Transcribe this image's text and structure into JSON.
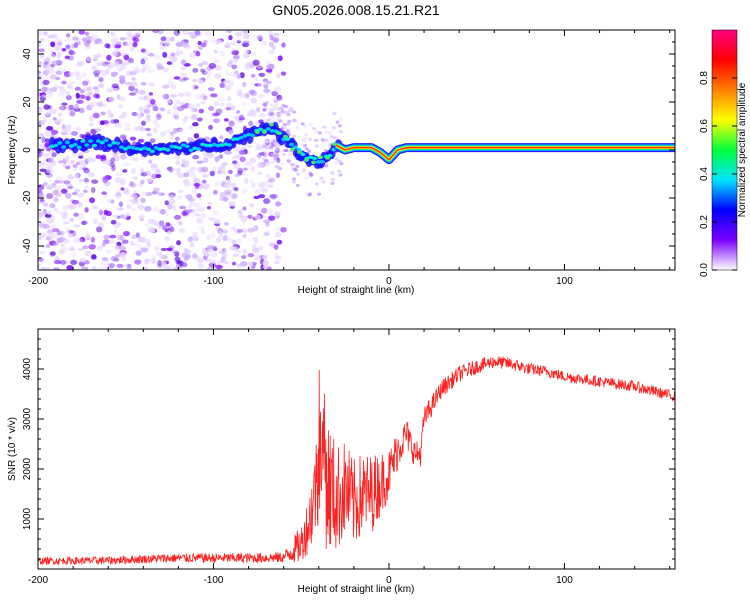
{
  "chart_data": [
    {
      "type": "heatmap",
      "title": "GN05.2026.008.15.21.R21",
      "xlabel": "Height of straight line (km)",
      "ylabel": "Frequency (Hz)",
      "xlim": [
        -200,
        163
      ],
      "ylim": [
        -50,
        50
      ],
      "xticks": [
        -200,
        -100,
        0,
        100
      ],
      "yticks": [
        -40,
        -20,
        0,
        20,
        40
      ],
      "colorbar": {
        "label": "Normalized spectral amplitude",
        "range": [
          0,
          1
        ],
        "ticks": [
          "0.0",
          "0.2",
          "0.4",
          "0.6",
          "0.8"
        ],
        "stops": [
          "#ffffff",
          "#7b00ff",
          "#0000ff",
          "#00e5ff",
          "#00ff3c",
          "#ffff00",
          "#ff8000",
          "#ff0000",
          "#ff0080"
        ]
      },
      "ridge": {
        "x": [
          -192,
          -180,
          -170,
          -160,
          -150,
          -140,
          -130,
          -120,
          -110,
          -100,
          -90,
          -80,
          -75,
          -68,
          -62,
          -55,
          -50,
          -45,
          -40,
          -35,
          -30,
          -25,
          -20,
          -15,
          -10,
          -5,
          0,
          5,
          10,
          50,
          100,
          163
        ],
        "freq": [
          2,
          2,
          3,
          3,
          1,
          0,
          0,
          1,
          1,
          2,
          3,
          6,
          8,
          10,
          6,
          2,
          -2,
          -4,
          -5,
          -3,
          2,
          0,
          1,
          1,
          1,
          -1,
          -4,
          0,
          1,
          1,
          1,
          1
        ]
      }
    },
    {
      "type": "line",
      "xlabel": "Height of straight line (km)",
      "ylabel": "SNR (10 * v/v)",
      "xlim": [
        -200,
        163
      ],
      "ylim": [
        0,
        4800
      ],
      "xticks": [
        -200,
        -100,
        0,
        100
      ],
      "yticks": [
        1000,
        2000,
        3000,
        4000
      ],
      "color": "#ff2020",
      "envelope": {
        "x": [
          -200,
          -160,
          -140,
          -120,
          -100,
          -80,
          -60,
          -50,
          -45,
          -42,
          -38,
          -35,
          -30,
          -25,
          -20,
          -15,
          -10,
          -5,
          0,
          5,
          10,
          15,
          18,
          20,
          25,
          30,
          40,
          50,
          60,
          70,
          80,
          90,
          100,
          120,
          140,
          163
        ],
        "snr": [
          160,
          170,
          200,
          220,
          220,
          220,
          230,
          500,
          1000,
          1600,
          2400,
          1700,
          1400,
          1600,
          1300,
          1500,
          1500,
          1700,
          1900,
          2400,
          2700,
          2300,
          2300,
          3000,
          3300,
          3600,
          3900,
          4050,
          4150,
          4100,
          4000,
          3950,
          3850,
          3750,
          3650,
          3450
        ]
      },
      "noise": {
        "x": [
          -200,
          -60,
          -48,
          -40,
          -36,
          -30,
          -20,
          -10,
          0,
          10,
          18,
          30,
          60,
          100,
          163
        ],
        "amplitude": [
          70,
          110,
          450,
          1100,
          1500,
          1100,
          900,
          800,
          500,
          320,
          250,
          180,
          130,
          110,
          110
        ]
      }
    }
  ]
}
